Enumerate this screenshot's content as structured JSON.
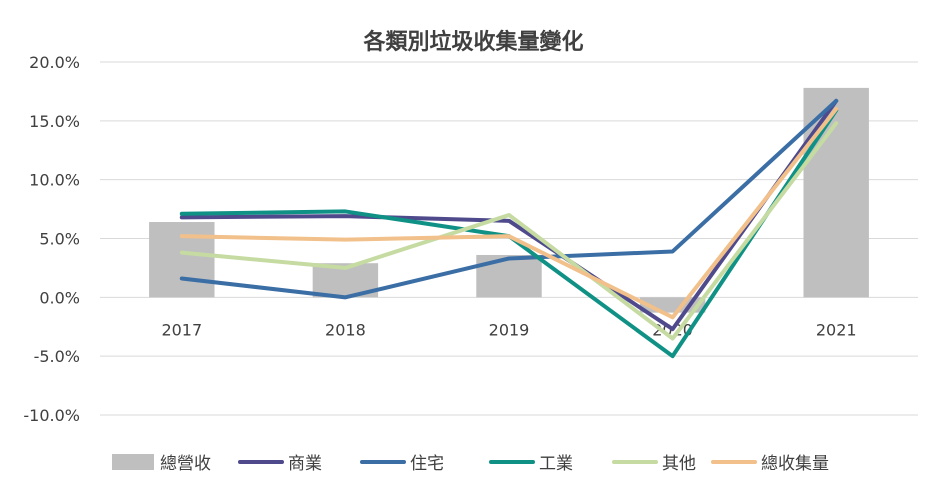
{
  "chart_data": {
    "type": "bar",
    "title": "各類別垃圾收集量變化",
    "xlabel": "",
    "ylabel": "",
    "categories": [
      "2017",
      "2018",
      "2019",
      "2020",
      "2021"
    ],
    "y_ticks": [
      "20.0%",
      "15.0%",
      "10.0%",
      "5.0%",
      "0.0%",
      "-5.0%",
      "-10.0%"
    ],
    "ylim": [
      -10,
      20
    ],
    "grid": true,
    "legend_position": "bottom",
    "series": [
      {
        "name": "總營收",
        "type": "bar",
        "color": "#bfbfbf",
        "values": [
          6.4,
          2.9,
          3.6,
          -1.3,
          17.8
        ]
      },
      {
        "name": "商業",
        "type": "line",
        "color": "#4f4a8c",
        "values": [
          6.8,
          6.9,
          6.5,
          -2.7,
          16.7
        ]
      },
      {
        "name": "住宅",
        "type": "line",
        "color": "#3a6ea5",
        "values": [
          1.6,
          0.0,
          3.3,
          3.9,
          16.7
        ]
      },
      {
        "name": "工業",
        "type": "line",
        "color": "#109185",
        "values": [
          7.1,
          7.3,
          5.2,
          -5.0,
          15.9
        ]
      },
      {
        "name": "其他",
        "type": "line",
        "color": "#c5dba2",
        "values": [
          3.8,
          2.5,
          7.0,
          -3.5,
          14.8
        ]
      },
      {
        "name": "總收集量",
        "type": "line",
        "color": "#f2c08a",
        "values": [
          5.2,
          4.9,
          5.2,
          -1.7,
          16.0
        ]
      }
    ]
  }
}
